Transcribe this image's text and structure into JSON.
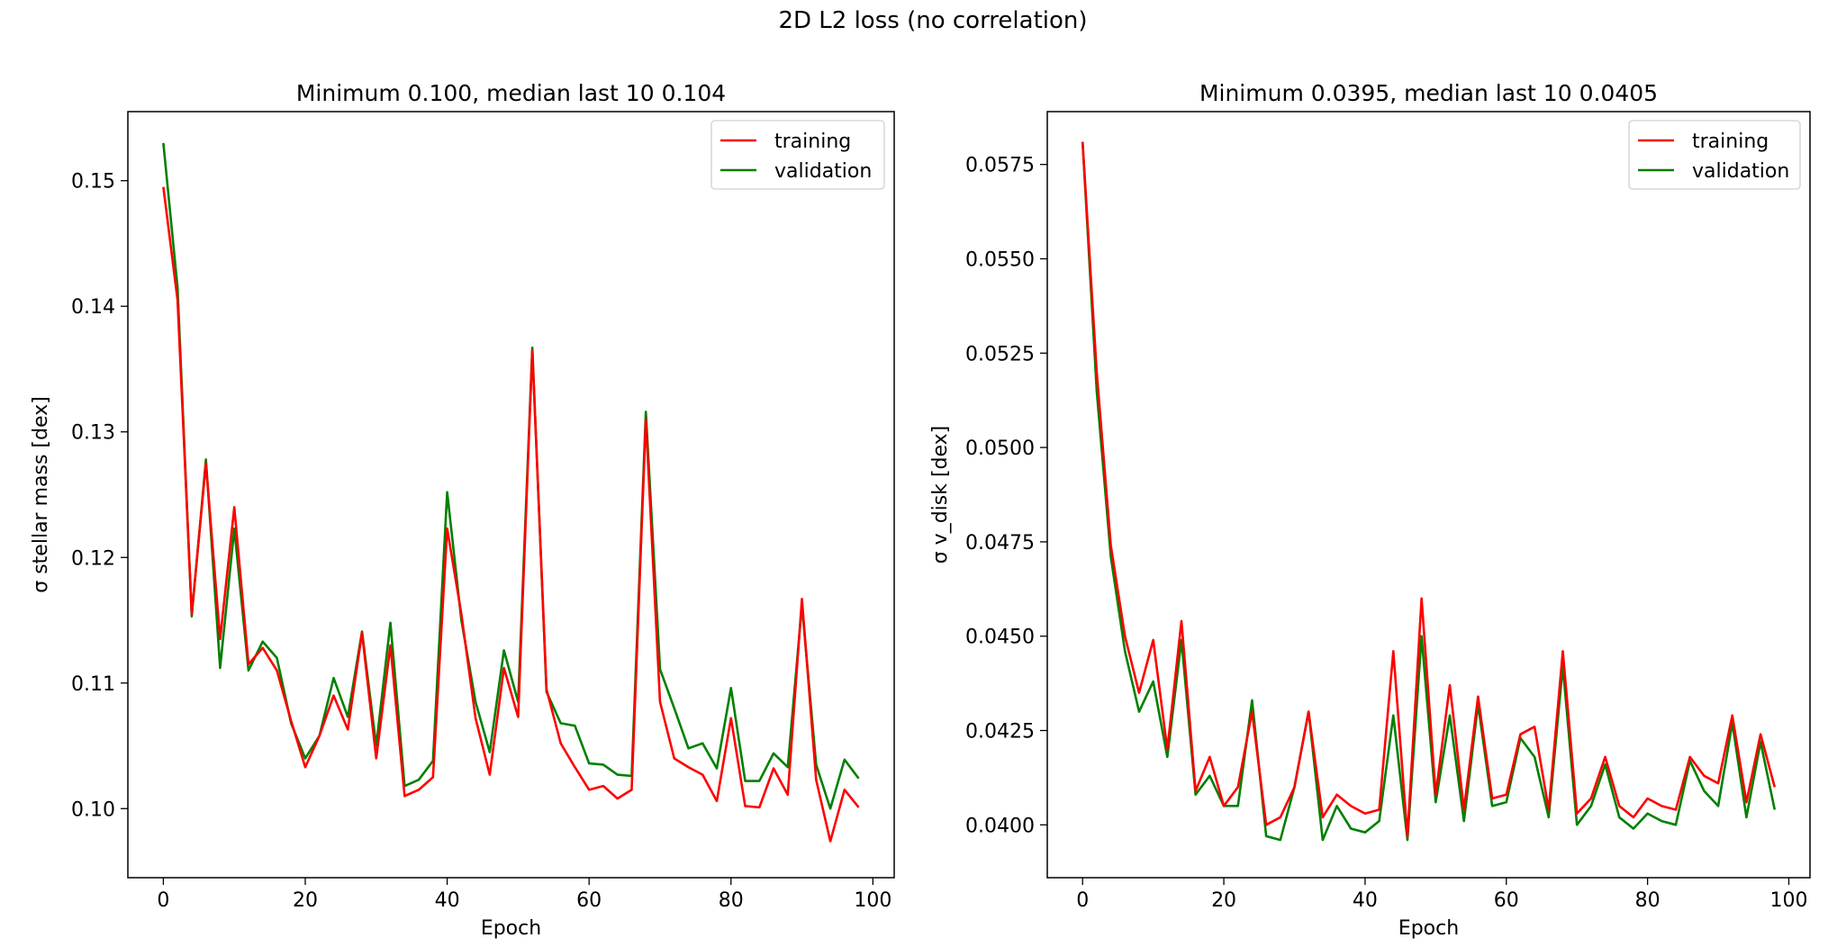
{
  "suptitle": "2D L2 loss (no correlation)",
  "chart_data": [
    {
      "type": "line",
      "title": "Minimum 0.100, median last 10 0.104",
      "xlabel": "Epoch",
      "ylabel": "σ stellar mass [dex]",
      "xlim": [
        -5,
        103
      ],
      "ylim": [
        0.0945,
        0.1555
      ],
      "xticks": [
        0,
        20,
        40,
        60,
        80,
        100
      ],
      "yticks": [
        0.1,
        0.11,
        0.12,
        0.13,
        0.14,
        0.15
      ],
      "ytick_labels": [
        "0.10",
        "0.11",
        "0.12",
        "0.13",
        "0.14",
        "0.15"
      ],
      "legend": "top-right",
      "grid": false,
      "x": [
        0,
        2,
        4,
        6,
        8,
        10,
        12,
        14,
        16,
        18,
        20,
        22,
        24,
        26,
        28,
        30,
        32,
        34,
        36,
        38,
        40,
        42,
        44,
        46,
        48,
        50,
        52,
        54,
        56,
        58,
        60,
        62,
        64,
        66,
        68,
        70,
        72,
        74,
        76,
        78,
        80,
        82,
        84,
        86,
        88,
        90,
        92,
        94,
        96,
        98
      ],
      "series": [
        {
          "name": "training",
          "color": "#ff0000",
          "values": [
            0.1495,
            0.1405,
            0.1155,
            0.1275,
            0.1135,
            0.124,
            0.1115,
            0.1128,
            0.111,
            0.107,
            0.1033,
            0.1058,
            0.109,
            0.1063,
            0.114,
            0.104,
            0.113,
            0.101,
            0.1015,
            0.1025,
            0.1223,
            0.1155,
            0.1072,
            0.1027,
            0.1112,
            0.1073,
            0.1365,
            0.1095,
            0.1052,
            0.1033,
            0.1015,
            0.1018,
            0.1008,
            0.1015,
            0.131,
            0.1085,
            0.104,
            0.1033,
            0.1027,
            0.1006,
            0.1072,
            0.1002,
            0.1001,
            0.1032,
            0.1011,
            0.1167,
            0.1023,
            0.0974,
            0.1015,
            0.1001
          ]
        },
        {
          "name": "validation",
          "color": "#008000",
          "values": [
            0.153,
            0.1415,
            0.1153,
            0.1278,
            0.1112,
            0.1223,
            0.111,
            0.1133,
            0.112,
            0.1068,
            0.104,
            0.1058,
            0.1104,
            0.1073,
            0.1141,
            0.105,
            0.1148,
            0.1018,
            0.1023,
            0.1038,
            0.1252,
            0.115,
            0.1085,
            0.1045,
            0.1126,
            0.1085,
            0.1367,
            0.1093,
            0.1068,
            0.1066,
            0.1036,
            0.1035,
            0.1027,
            0.1026,
            0.1316,
            0.1111,
            0.108,
            0.1048,
            0.1052,
            0.1032,
            0.1096,
            0.1022,
            0.1022,
            0.1044,
            0.1033,
            0.1162,
            0.1035,
            0.1,
            0.1039,
            0.1024
          ]
        }
      ]
    },
    {
      "type": "line",
      "title": "Minimum 0.0395, median last 10 0.0405",
      "xlabel": "Epoch",
      "ylabel": "σ v_disk [dex]",
      "xlim": [
        -5,
        103
      ],
      "ylim": [
        0.0386,
        0.0589
      ],
      "xticks": [
        0,
        20,
        40,
        60,
        80,
        100
      ],
      "yticks": [
        0.04,
        0.0425,
        0.045,
        0.0475,
        0.05,
        0.0525,
        0.055,
        0.0575
      ],
      "ytick_labels": [
        "0.0400",
        "0.0425",
        "0.0450",
        "0.0475",
        "0.0500",
        "0.0525",
        "0.0550",
        "0.0575"
      ],
      "legend": "top-right",
      "grid": false,
      "x": [
        0,
        2,
        4,
        6,
        8,
        10,
        12,
        14,
        16,
        18,
        20,
        22,
        24,
        26,
        28,
        30,
        32,
        34,
        36,
        38,
        40,
        42,
        44,
        46,
        48,
        50,
        52,
        54,
        56,
        58,
        60,
        62,
        64,
        66,
        68,
        70,
        72,
        74,
        76,
        78,
        80,
        82,
        84,
        86,
        88,
        90,
        92,
        94,
        96,
        98
      ],
      "series": [
        {
          "name": "training",
          "color": "#ff0000",
          "values": [
            0.0581,
            0.052,
            0.0474,
            0.045,
            0.0435,
            0.0449,
            0.042,
            0.0454,
            0.0409,
            0.0418,
            0.0405,
            0.041,
            0.043,
            0.04,
            0.0402,
            0.041,
            0.043,
            0.0402,
            0.0408,
            0.0405,
            0.0403,
            0.0404,
            0.0446,
            0.0397,
            0.046,
            0.0408,
            0.0437,
            0.0404,
            0.0434,
            0.0407,
            0.0408,
            0.0424,
            0.0426,
            0.0404,
            0.0446,
            0.0403,
            0.0407,
            0.0418,
            0.0405,
            0.0402,
            0.0407,
            0.0405,
            0.0404,
            0.0418,
            0.0413,
            0.0411,
            0.0429,
            0.0406,
            0.0424,
            0.041
          ]
        },
        {
          "name": "validation",
          "color": "#008000",
          "values": [
            0.0581,
            0.0515,
            0.0471,
            0.0446,
            0.043,
            0.0438,
            0.0418,
            0.0449,
            0.0408,
            0.0413,
            0.0405,
            0.0405,
            0.0433,
            0.0397,
            0.0396,
            0.041,
            0.043,
            0.0396,
            0.0405,
            0.0399,
            0.0398,
            0.0401,
            0.0429,
            0.0396,
            0.045,
            0.0406,
            0.0429,
            0.0401,
            0.0432,
            0.0405,
            0.0406,
            0.0423,
            0.0418,
            0.0402,
            0.0442,
            0.04,
            0.0405,
            0.0416,
            0.0402,
            0.0399,
            0.0403,
            0.0401,
            0.04,
            0.0417,
            0.0409,
            0.0405,
            0.0427,
            0.0402,
            0.0422,
            0.0404
          ]
        }
      ]
    }
  ]
}
